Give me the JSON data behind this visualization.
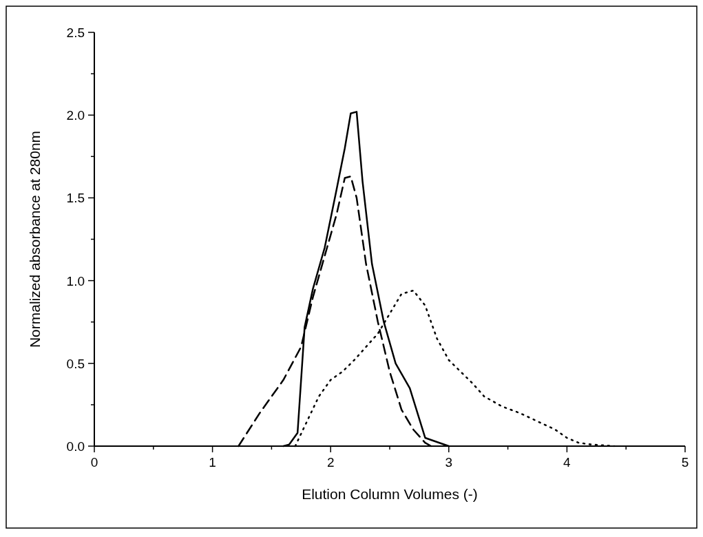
{
  "chart_data": {
    "type": "line",
    "xlabel": "Elution Column Volumes (-)",
    "ylabel": "Normalized absorbance at 280nm",
    "xlim": [
      0,
      5
    ],
    "ylim": [
      0,
      2.5
    ],
    "xticks": [
      0,
      {
        "value": 0.5,
        "label": null
      },
      1,
      {
        "value": 1.5,
        "label": null
      },
      2,
      {
        "value": 2.5,
        "label": null
      },
      3,
      {
        "value": 3.5,
        "label": null
      },
      4,
      {
        "value": 4.5,
        "label": null
      },
      5
    ],
    "yticks": [
      {
        "value": 0,
        "label": "0.0"
      },
      {
        "value": 0.25,
        "label": null
      },
      {
        "value": 0.5,
        "label": "0.5"
      },
      {
        "value": 0.75,
        "label": null
      },
      {
        "value": 1,
        "label": "1.0"
      },
      {
        "value": 1.25,
        "label": null
      },
      {
        "value": 1.5,
        "label": "1.5"
      },
      {
        "value": 1.75,
        "label": null
      },
      {
        "value": 2,
        "label": "2.0"
      },
      {
        "value": 2.25,
        "label": null
      },
      {
        "value": 2.5,
        "label": "2.5"
      }
    ],
    "grid": false,
    "marker": "none",
    "series": [
      {
        "color": "#000000",
        "line_style": "solid",
        "x": [
          1.6,
          1.65,
          1.72,
          1.78,
          1.85,
          1.95,
          2.05,
          2.12,
          2.17,
          2.22,
          2.27,
          2.35,
          2.45,
          2.55,
          2.67,
          2.8,
          3.0
        ],
        "values": [
          0,
          0.01,
          0.08,
          0.72,
          0.95,
          1.2,
          1.55,
          1.8,
          2.01,
          2.02,
          1.6,
          1.1,
          0.75,
          0.5,
          0.35,
          0.05,
          0
        ]
      },
      {
        "color": "#000000",
        "line_style": "dashed",
        "x": [
          1.22,
          1.4,
          1.6,
          1.75,
          1.85,
          1.95,
          2.05,
          2.12,
          2.17,
          2.22,
          2.3,
          2.4,
          2.5,
          2.6,
          2.7,
          2.8,
          2.85
        ],
        "values": [
          0,
          0.2,
          0.4,
          0.6,
          0.9,
          1.15,
          1.4,
          1.62,
          1.63,
          1.5,
          1.1,
          0.75,
          0.45,
          0.22,
          0.1,
          0.02,
          0
        ]
      },
      {
        "color": "#000000",
        "line_style": "dotted",
        "x": [
          1.7,
          1.8,
          1.9,
          2.0,
          2.1,
          2.2,
          2.3,
          2.4,
          2.5,
          2.6,
          2.7,
          2.8,
          2.9,
          3.0,
          3.1,
          3.2,
          3.3,
          3.45,
          3.6,
          3.75,
          3.9,
          4.0,
          4.1,
          4.2,
          4.4
        ],
        "values": [
          0,
          0.15,
          0.3,
          0.4,
          0.45,
          0.52,
          0.6,
          0.68,
          0.8,
          0.92,
          0.94,
          0.85,
          0.65,
          0.52,
          0.45,
          0.38,
          0.3,
          0.24,
          0.2,
          0.15,
          0.1,
          0.05,
          0.02,
          0.01,
          0
        ]
      }
    ]
  }
}
